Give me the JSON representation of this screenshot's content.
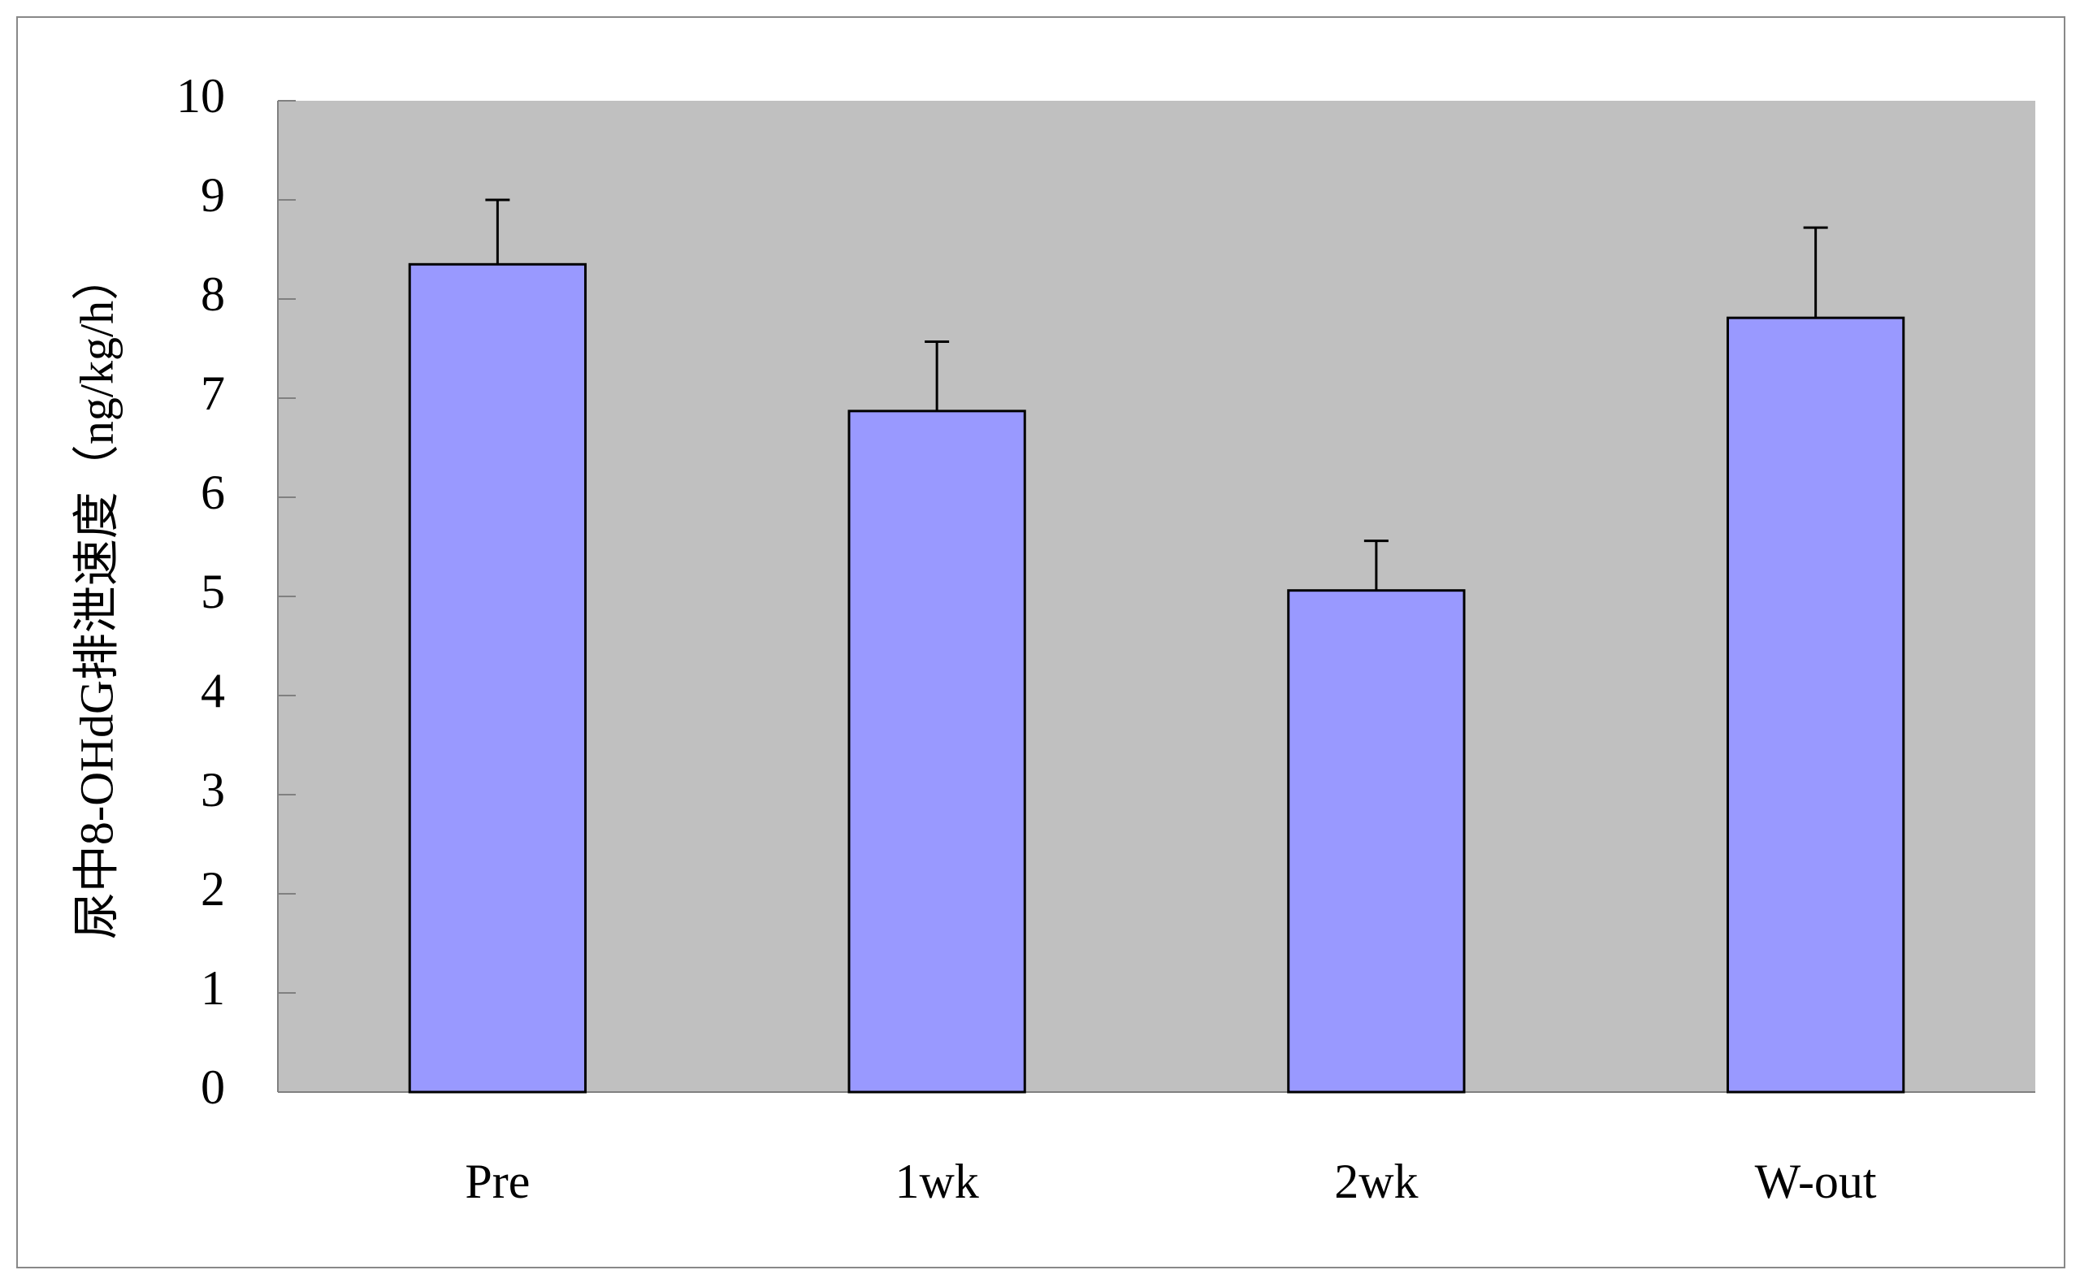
{
  "chart_data": {
    "type": "bar",
    "y_label": "尿中8-OHdG排泄速度（ng/kg/h）",
    "categories": [
      "Pre",
      "1wk",
      "2wk",
      "W-out"
    ],
    "values": [
      8.35,
      6.87,
      5.06,
      7.81
    ],
    "errors": [
      0.65,
      0.7,
      0.5,
      0.91
    ],
    "color": "#9999ff",
    "plot_background": "#c0c0c0",
    "ylim": [
      0,
      10
    ],
    "yticks": [
      0,
      1,
      2,
      3,
      4,
      5,
      6,
      7,
      8,
      9,
      10
    ]
  }
}
